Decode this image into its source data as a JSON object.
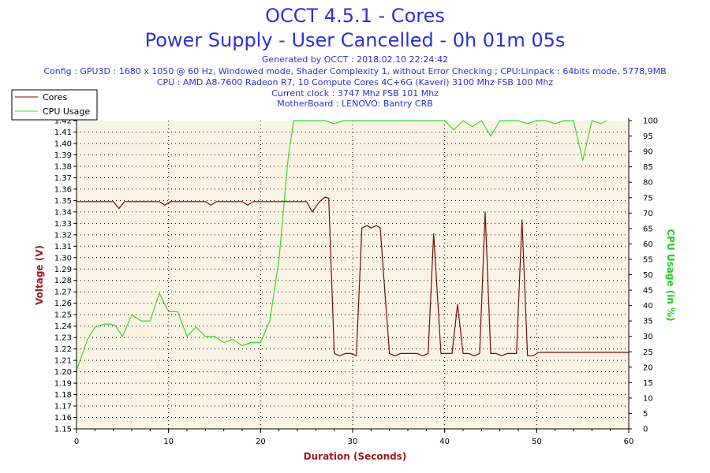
{
  "header": {
    "title": "OCCT 4.5.1 - Cores",
    "subtitle": "Power Supply - User Cancelled - 0h 01m 05s",
    "generated": "Generated by OCCT : 2018.02.10 22:24:42",
    "config": "Config : GPU3D : 1680 x 1050 @ 60 Hz, Windowed mode, Shader Complexity 1, without Error Checking ; CPU:Linpack : 64bits mode, 5778,9MB",
    "cpu": "CPU : AMD A8-7600 Radeon R7, 10 Compute Cores 4C+6G (Kaveri) 3100 Mhz FSB 100 Mhz",
    "clock": "Current clock : 3747 Mhz FSB 101 Mhz",
    "motherboard": "MotherBoard : LENOVO: Bantry CRB"
  },
  "colors": {
    "cores": "#7a0a0a",
    "cpu_usage": "#33dd33",
    "plot_bg": "#fbf3e3",
    "axis_label_left": "#9b1b1b",
    "axis_label_right": "#22cc22",
    "axis_label_x": "#9b1b1b"
  },
  "chart_data": {
    "type": "line",
    "title": "OCCT 4.5.1 - Cores",
    "xlabel": "Duration (Seconds)",
    "ylabel": "Voltage (V)",
    "y2label": "CPU Usage (in %)",
    "xlim": [
      0,
      60
    ],
    "ylim": [
      1.15,
      1.42
    ],
    "y2lim": [
      0,
      100
    ],
    "grid": true,
    "legend_position": "top-left",
    "x_ticks": [
      "0",
      "10",
      "20",
      "30",
      "40",
      "50",
      "60"
    ],
    "y_ticks": [
      "1.15",
      "1.16",
      "1.17",
      "1.18",
      "1.19",
      "1.20",
      "1.21",
      "1.22",
      "1.23",
      "1.24",
      "1.25",
      "1.26",
      "1.27",
      "1.28",
      "1.29",
      "1.30",
      "1.31",
      "1.32",
      "1.33",
      "1.34",
      "1.35",
      "1.36",
      "1.37",
      "1.38",
      "1.39",
      "1.40",
      "1.41",
      "1.42"
    ],
    "y2_ticks": [
      "0",
      "5",
      "10",
      "15",
      "20",
      "25",
      "30",
      "35",
      "40",
      "45",
      "50",
      "55",
      "60",
      "65",
      "70",
      "75",
      "80",
      "85",
      "90",
      "95",
      "100"
    ],
    "series": [
      {
        "name": "Cores",
        "axis": "left",
        "x": [
          0,
          1,
          2,
          3,
          4,
          4.6,
          5.2,
          6,
          7,
          8,
          9,
          9.6,
          10.2,
          11,
          12,
          13,
          14,
          14.6,
          15.2,
          16,
          17,
          18,
          18.6,
          19.2,
          20,
          21,
          22,
          23,
          24,
          25,
          25.6,
          26.4,
          27,
          27.4,
          28,
          28.6,
          29.2,
          29.8,
          30.4,
          31,
          31.6,
          32,
          32.6,
          33,
          33.4,
          34,
          34.6,
          35.2,
          36,
          37,
          37.6,
          38.2,
          38.8,
          39.6,
          40.2,
          40.8,
          41.4,
          42,
          42.6,
          43.2,
          43.8,
          44.4,
          45,
          45.6,
          46.2,
          46.8,
          47.4,
          47.8,
          48.4,
          49,
          49.6,
          50.2,
          51,
          52,
          53,
          54,
          55,
          56,
          57,
          58,
          59,
          60
        ],
        "values": [
          1.349,
          1.349,
          1.349,
          1.349,
          1.349,
          1.343,
          1.349,
          1.349,
          1.349,
          1.349,
          1.349,
          1.346,
          1.349,
          1.349,
          1.349,
          1.349,
          1.349,
          1.346,
          1.349,
          1.349,
          1.349,
          1.349,
          1.346,
          1.349,
          1.349,
          1.349,
          1.349,
          1.349,
          1.349,
          1.349,
          1.34,
          1.349,
          1.353,
          1.352,
          1.216,
          1.214,
          1.216,
          1.216,
          1.214,
          1.326,
          1.328,
          1.326,
          1.328,
          1.326,
          1.281,
          1.216,
          1.214,
          1.216,
          1.216,
          1.216,
          1.214,
          1.216,
          1.321,
          1.216,
          1.216,
          1.216,
          1.259,
          1.216,
          1.216,
          1.214,
          1.216,
          1.34,
          1.216,
          1.216,
          1.214,
          1.216,
          1.216,
          1.216,
          1.333,
          1.214,
          1.214,
          1.217,
          1.217,
          1.217,
          1.217,
          1.217,
          1.217,
          1.217,
          1.217,
          1.217,
          1.217,
          1.217
        ]
      },
      {
        "name": "CPU Usage",
        "axis": "right",
        "x": [
          0,
          1.2,
          2,
          3,
          3.6,
          4.2,
          5,
          6,
          7,
          8,
          9,
          10,
          11,
          12,
          13,
          14,
          15,
          16,
          17,
          18,
          19,
          20,
          21,
          22,
          23,
          23.6,
          24.3,
          25,
          26,
          27,
          28,
          29,
          30,
          31,
          32,
          33,
          34,
          35,
          36,
          37,
          38,
          39,
          40,
          41,
          42,
          43,
          44,
          45,
          46,
          47,
          48,
          49,
          50,
          51,
          52,
          53,
          54,
          55,
          56,
          57,
          57.6
        ],
        "values": [
          19,
          29,
          33,
          34,
          34,
          33.5,
          30,
          37,
          35,
          35,
          44,
          38,
          38,
          30,
          33,
          30,
          30,
          28,
          29,
          27,
          28,
          28,
          35,
          55,
          88,
          100,
          100,
          100,
          100,
          100,
          99,
          100,
          100,
          100,
          100,
          100,
          100,
          100,
          100,
          100,
          100,
          100,
          100,
          97,
          100,
          98,
          100,
          95,
          100,
          100,
          100,
          99,
          100,
          100,
          99,
          100,
          100,
          87,
          100,
          99,
          100
        ]
      }
    ]
  }
}
